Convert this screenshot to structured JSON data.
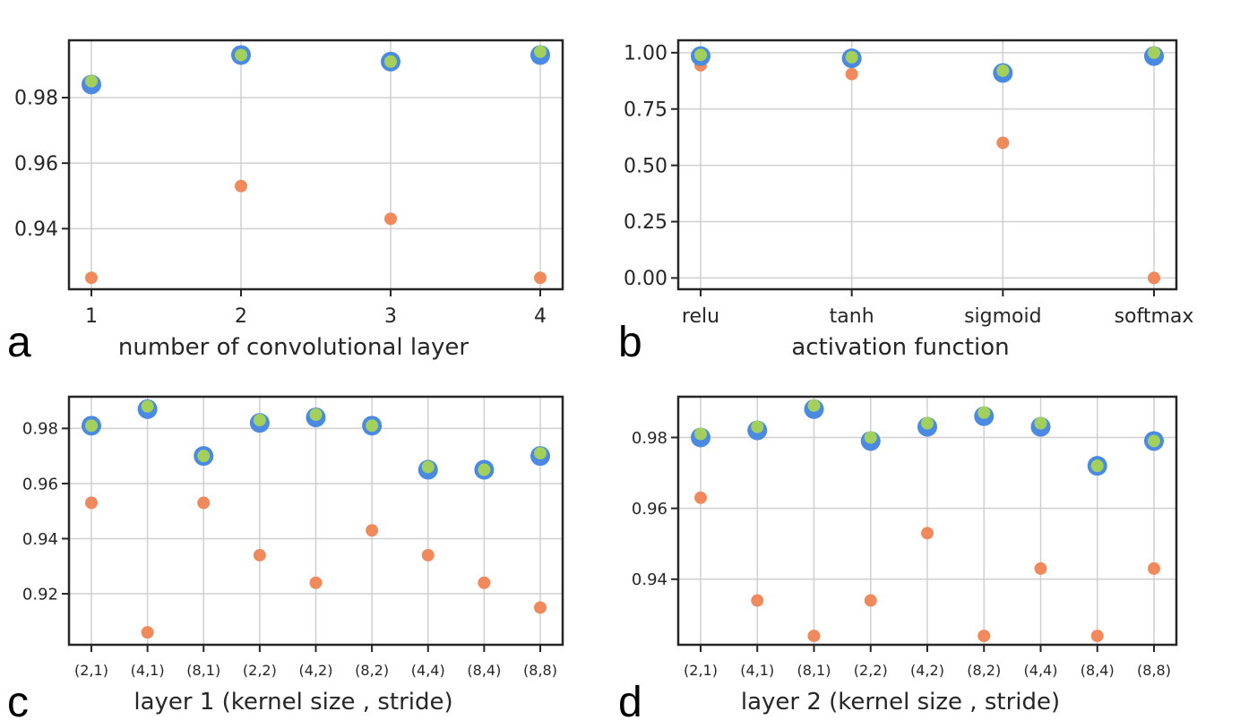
{
  "figure": {
    "colors": {
      "blue": "#4a8ae2",
      "green": "#a3d05a",
      "orange": "#f08a5d",
      "grid": "#d0d0d0",
      "axis": "#262626"
    }
  },
  "chart_data": [
    {
      "type": "scatter",
      "panel": "a",
      "title": "",
      "xlabel": "number of convolutional layer",
      "ylabel": "",
      "categories": [
        "1",
        "2",
        "3",
        "4"
      ],
      "yticks": [
        "0.94",
        "0.96",
        "0.98"
      ],
      "ytick_values": [
        0.94,
        0.96,
        0.98
      ],
      "ylim": [
        0.9215,
        0.9975
      ],
      "grid": true,
      "series": [
        {
          "name": "blue",
          "values": [
            0.984,
            0.993,
            0.991,
            0.993
          ]
        },
        {
          "name": "green",
          "values": [
            0.985,
            0.993,
            0.991,
            0.994
          ]
        },
        {
          "name": "orange",
          "values": [
            0.925,
            0.953,
            0.943,
            0.925
          ]
        }
      ]
    },
    {
      "type": "scatter",
      "panel": "b",
      "title": "",
      "xlabel": "activation function",
      "ylabel": "",
      "categories": [
        "relu",
        "tanh",
        "sigmoid",
        "softmax"
      ],
      "yticks": [
        "0.00",
        "0.25",
        "0.50",
        "0.75",
        "1.00"
      ],
      "ytick_values": [
        0.0,
        0.25,
        0.5,
        0.75,
        1.0
      ],
      "ylim": [
        -0.05,
        1.055
      ],
      "grid": true,
      "series": [
        {
          "name": "blue",
          "values": [
            0.985,
            0.975,
            0.91,
            0.985
          ]
        },
        {
          "name": "green",
          "values": [
            0.99,
            0.98,
            0.92,
            1.0
          ]
        },
        {
          "name": "orange",
          "values": [
            0.944,
            0.905,
            0.6,
            0.0
          ]
        }
      ]
    },
    {
      "type": "scatter",
      "panel": "c",
      "title": "",
      "xlabel": "layer 1 (kernel size , stride)",
      "ylabel": "",
      "categories": [
        "(2,1)",
        "(4,1)",
        "(8,1)",
        "(2,2)",
        "(4,2)",
        "(8,2)",
        "(4,4)",
        "(8,4)",
        "(8,8)"
      ],
      "yticks": [
        "0.92",
        "0.96",
        "0.94",
        "0.98"
      ],
      "ytick_values": [
        0.92,
        0.96,
        0.94,
        0.98
      ],
      "ylim": [
        0.9015,
        0.9915
      ],
      "grid": true,
      "series": [
        {
          "name": "blue",
          "values": [
            0.981,
            0.987,
            0.97,
            0.982,
            0.984,
            0.981,
            0.965,
            0.965,
            0.97
          ]
        },
        {
          "name": "green",
          "values": [
            0.981,
            0.988,
            0.97,
            0.983,
            0.985,
            0.981,
            0.966,
            0.965,
            0.971
          ]
        },
        {
          "name": "orange",
          "values": [
            0.953,
            0.906,
            0.953,
            0.934,
            0.924,
            0.943,
            0.934,
            0.924,
            0.915
          ]
        }
      ]
    },
    {
      "type": "scatter",
      "panel": "d",
      "title": "",
      "xlabel": "layer 2 (kernel size , stride)",
      "ylabel": "",
      "categories": [
        "(2,1)",
        "(4,1)",
        "(8,1)",
        "(2,2)",
        "(4,2)",
        "(8,2)",
        "(4,4)",
        "(8,4)",
        "(8,8)"
      ],
      "yticks": [
        "0.94",
        "0.96",
        "0.98"
      ],
      "ytick_values": [
        0.94,
        0.96,
        0.98
      ],
      "ylim": [
        0.9215,
        0.9915
      ],
      "grid": true,
      "series": [
        {
          "name": "blue",
          "values": [
            0.98,
            0.982,
            0.988,
            0.979,
            0.983,
            0.986,
            0.983,
            0.972,
            0.979
          ]
        },
        {
          "name": "green",
          "values": [
            0.981,
            0.983,
            0.989,
            0.98,
            0.984,
            0.987,
            0.984,
            0.972,
            0.979
          ]
        },
        {
          "name": "orange",
          "values": [
            0.963,
            0.934,
            0.924,
            0.934,
            0.953,
            0.924,
            0.943,
            0.924,
            0.943
          ]
        }
      ]
    }
  ]
}
